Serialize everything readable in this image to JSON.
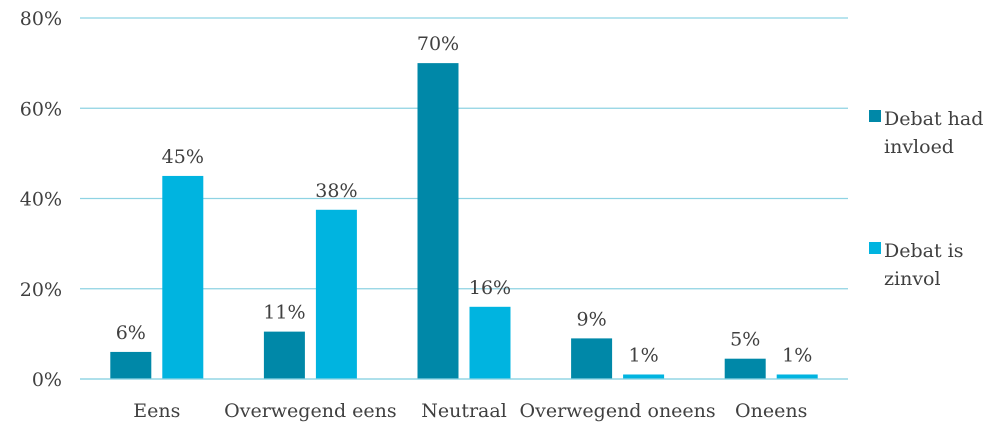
{
  "chart_data": {
    "type": "bar",
    "categories": [
      "Eens",
      "Overwegend eens",
      "Neutraal",
      "Overwegend oneens",
      "Oneens"
    ],
    "series": [
      {
        "name": "Debat had invloed",
        "values": [
          6,
          10.5,
          70,
          9,
          4.5
        ],
        "labels": [
          "6%",
          "11%",
          "70%",
          "9%",
          "5%"
        ],
        "color": "#0088a8"
      },
      {
        "name": "Debat is zinvol",
        "values": [
          45,
          37.5,
          16,
          1,
          1
        ],
        "labels": [
          "45%",
          "38%",
          "16%",
          "1%",
          "1%"
        ],
        "color": "#00b4e0"
      }
    ],
    "ylim": [
      0,
      80
    ],
    "yticks": [
      0,
      20,
      40,
      60,
      80
    ],
    "ytick_labels": [
      "0%",
      "20%",
      "40%",
      "60%",
      "80%"
    ],
    "grid": true,
    "legend_position": "right",
    "legend_lines": [
      [
        "Debat had",
        "invloed"
      ],
      [
        "Debat is",
        "zinvol"
      ]
    ]
  }
}
